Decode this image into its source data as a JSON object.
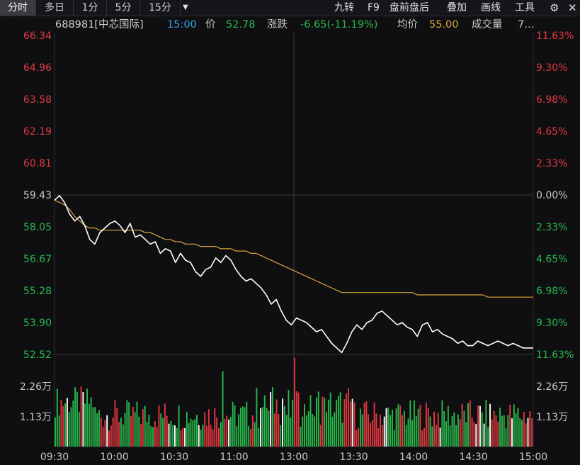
{
  "toolbar": {
    "tabs": [
      "分时",
      "多日",
      "1分",
      "5分",
      "15分"
    ],
    "dropdown_icon": "caret-down-icon",
    "tools": [
      "九转",
      "F9",
      "盘前盘后",
      "叠加",
      "画线",
      "工具"
    ],
    "settings_icon": "gear-icon",
    "close_icon": "close-icon"
  },
  "info": {
    "code_name": "688981[中芯国际]",
    "time": "15:00",
    "price_label": "价",
    "price": "52.78",
    "change_label": "涨跌",
    "change": "-6.65(-11.19%)",
    "avg_label": "均价",
    "avg": "55.00",
    "volume_label": "成交量",
    "volume": "7…"
  },
  "colors": {
    "up": "#e0383e",
    "down": "#28b84a",
    "price_line": "#ffffff",
    "avg_line": "#d8a83a",
    "grid": "#2c2c30"
  },
  "chart_data": {
    "type": "line",
    "y_left_ticks": [
      "66.34",
      "64.96",
      "63.58",
      "62.19",
      "60.81",
      "59.43",
      "58.05",
      "56.67",
      "55.28",
      "53.90",
      "52.52"
    ],
    "y_right_ticks": [
      "11.63%",
      "9.30%",
      "6.98%",
      "4.65%",
      "2.33%",
      "0.00%",
      "2.33%",
      "4.65%",
      "6.98%",
      "9.30%",
      "11.63%"
    ],
    "prev_close": 59.43,
    "ylim": [
      52.52,
      66.34
    ],
    "x_ticks": [
      "09:30",
      "10:00",
      "10:30",
      "11:00",
      "13:00",
      "13:30",
      "14:00",
      "14:30",
      "15:00"
    ],
    "volume_ticks": [
      "2.26万",
      "1.13万"
    ],
    "volume_max": 30000,
    "series": [
      {
        "values": [
          59.2,
          59.4,
          59.1,
          58.6,
          58.3,
          58.5,
          58.1,
          57.5,
          57.3,
          57.8,
          58.0,
          58.2,
          58.3,
          58.1,
          57.8,
          58.2,
          57.6,
          57.7,
          57.5,
          57.3,
          57.4,
          56.9,
          57.1,
          57.0,
          56.5,
          56.9,
          56.6,
          56.5,
          56.1,
          55.9,
          56.2,
          56.3,
          56.7,
          56.5,
          56.8,
          56.6,
          56.2,
          55.9,
          55.7,
          55.8,
          55.6,
          55.4,
          55.1,
          54.7,
          54.9,
          54.4,
          54.0,
          53.8,
          54.1,
          54.0,
          53.9,
          53.7,
          53.5,
          53.6,
          53.3,
          53.0,
          52.8,
          52.6,
          53.0,
          53.5,
          53.8,
          53.6,
          53.9,
          54.0,
          54.3,
          54.4,
          54.2,
          54.0,
          53.8,
          53.9,
          53.7,
          53.6,
          53.3,
          53.8,
          53.9,
          53.5,
          53.6,
          53.4,
          53.3,
          53.2,
          53.0,
          53.1,
          52.9,
          52.9,
          53.1,
          53.0,
          52.9,
          53.0,
          53.1,
          53.0,
          52.9,
          53.0,
          52.9,
          52.8,
          52.8,
          52.8
        ]
      },
      {
        "values": [
          59.2,
          59.1,
          59.0,
          58.8,
          58.5,
          58.3,
          58.1,
          58.0,
          58.0,
          57.9,
          57.9,
          57.9,
          57.9,
          57.9,
          57.9,
          57.9,
          57.9,
          57.9,
          57.8,
          57.8,
          57.7,
          57.6,
          57.5,
          57.5,
          57.4,
          57.4,
          57.3,
          57.3,
          57.3,
          57.2,
          57.2,
          57.2,
          57.2,
          57.1,
          57.1,
          57.1,
          57.0,
          57.0,
          57.0,
          56.9,
          56.9,
          56.8,
          56.7,
          56.6,
          56.5,
          56.4,
          56.3,
          56.2,
          56.1,
          56.0,
          55.9,
          55.8,
          55.7,
          55.6,
          55.5,
          55.4,
          55.3,
          55.2,
          55.2,
          55.2,
          55.2,
          55.2,
          55.2,
          55.2,
          55.2,
          55.2,
          55.2,
          55.2,
          55.2,
          55.2,
          55.2,
          55.2,
          55.1,
          55.1,
          55.1,
          55.1,
          55.1,
          55.1,
          55.1,
          55.1,
          55.1,
          55.1,
          55.1,
          55.1,
          55.1,
          55.1,
          55.0,
          55.0,
          55.0,
          55.0,
          55.0,
          55.0,
          55.0,
          55.0,
          55.0,
          55.0
        ]
      }
    ]
  }
}
